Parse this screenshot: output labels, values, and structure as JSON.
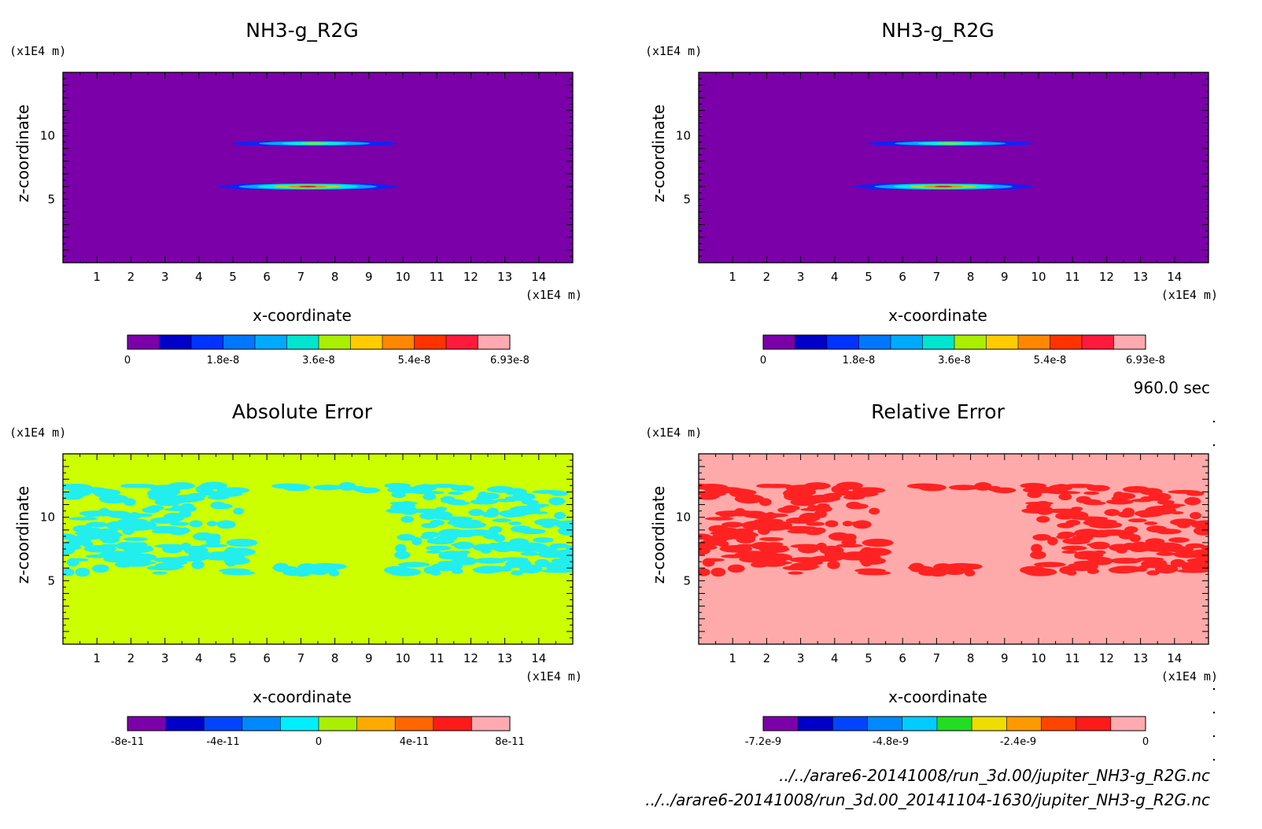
{
  "footer": {
    "time_label": "960.0 sec",
    "file_paths": [
      "../../arare6-20141008/run_3d.00/jupiter_NH3-g_R2G.nc",
      "../../arare6-20141008/run_3d.00_20141104-1630/jupiter_NH3-g_R2G.nc"
    ]
  },
  "chart_data": [
    {
      "type": "heatmap",
      "title": "NH3-g_R2G",
      "xlabel": "x-coordinate",
      "ylabel": "z-coordinate",
      "x_unit": "(x1E4 m)",
      "y_unit": "(x1E4 m)",
      "xlim": [
        0,
        15
      ],
      "ylim": [
        0,
        15
      ],
      "x_ticks": [
        1,
        2,
        3,
        4,
        5,
        6,
        7,
        8,
        9,
        10,
        11,
        12,
        13,
        14
      ],
      "y_ticks": [
        5,
        10
      ],
      "background_color": "#7b00aa",
      "features": [
        {
          "kind": "ellipse",
          "cx": 7.4,
          "cz": 9.4,
          "rx": 2.45,
          "rz": 0.22,
          "levels": [
            "#0026ff",
            "#00aaff",
            "#00f0d0",
            "#aadd00"
          ]
        },
        {
          "kind": "ellipse",
          "cx": 7.2,
          "cz": 6.0,
          "rx": 2.65,
          "rz": 0.28,
          "levels": [
            "#0026ff",
            "#00aaff",
            "#00f0d0",
            "#aadd00",
            "#ff8800",
            "#ff1a1a"
          ]
        }
      ],
      "colorbar": {
        "colors": [
          "#7b00aa",
          "#0000c8",
          "#0033ff",
          "#0077ff",
          "#00aaff",
          "#00e5d0",
          "#aaee00",
          "#ffcc00",
          "#ff8800",
          "#ff3300",
          "#ff1a3c",
          "#ffaab0"
        ],
        "tick_labels": [
          "0",
          "1.8e-8",
          "3.6e-8",
          "5.4e-8",
          "6.93e-8"
        ]
      }
    },
    {
      "type": "heatmap",
      "title": "NH3-g_R2G",
      "xlabel": "x-coordinate",
      "ylabel": "z-coordinate",
      "x_unit": "(x1E4 m)",
      "y_unit": "(x1E4 m)",
      "xlim": [
        0,
        15
      ],
      "ylim": [
        0,
        15
      ],
      "x_ticks": [
        1,
        2,
        3,
        4,
        5,
        6,
        7,
        8,
        9,
        10,
        11,
        12,
        13,
        14
      ],
      "y_ticks": [
        5,
        10
      ],
      "background_color": "#7b00aa",
      "features": [
        {
          "kind": "ellipse",
          "cx": 7.4,
          "cz": 9.4,
          "rx": 2.45,
          "rz": 0.22,
          "levels": [
            "#0026ff",
            "#00aaff",
            "#00f0d0",
            "#aadd00"
          ]
        },
        {
          "kind": "ellipse",
          "cx": 7.2,
          "cz": 6.0,
          "rx": 2.65,
          "rz": 0.28,
          "levels": [
            "#0026ff",
            "#00aaff",
            "#00f0d0",
            "#aadd00",
            "#ff8800",
            "#ff1a1a"
          ]
        }
      ],
      "colorbar": {
        "colors": [
          "#7b00aa",
          "#0000c8",
          "#0033ff",
          "#0077ff",
          "#00aaff",
          "#00e5d0",
          "#aaee00",
          "#ffcc00",
          "#ff8800",
          "#ff3300",
          "#ff1a3c",
          "#ffaab0"
        ],
        "tick_labels": [
          "0",
          "1.8e-8",
          "3.6e-8",
          "5.4e-8",
          "6.93e-8"
        ]
      }
    },
    {
      "type": "heatmap",
      "title": "Absolute Error",
      "xlabel": "x-coordinate",
      "ylabel": "z-coordinate",
      "x_unit": "(x1E4 m)",
      "y_unit": "(x1E4 m)",
      "xlim": [
        0,
        15
      ],
      "ylim": [
        0,
        15
      ],
      "x_ticks": [
        1,
        2,
        3,
        4,
        5,
        6,
        7,
        8,
        9,
        10,
        11,
        12,
        13,
        14
      ],
      "y_ticks": [
        5,
        10
      ],
      "background_color": "#ccff00",
      "features": [
        {
          "kind": "speckle",
          "color": "#22eeee",
          "seed": 7,
          "regions": [
            {
              "x": [
                0.0,
                5.3
              ],
              "z": [
                5.6,
                12.5
              ],
              "count": 140
            },
            {
              "x": [
                9.8,
                15.0
              ],
              "z": [
                5.6,
                12.5
              ],
              "count": 140
            },
            {
              "x": [
                6.3,
                8.7
              ],
              "z": [
                5.6,
                6.3
              ],
              "count": 14
            },
            {
              "x": [
                5.8,
                9.2
              ],
              "z": [
                12.0,
                12.5
              ],
              "count": 6
            }
          ]
        }
      ],
      "colorbar": {
        "colors": [
          "#7b00aa",
          "#0000c8",
          "#0044ff",
          "#0088ff",
          "#00eeff",
          "#aaee00",
          "#ffaa00",
          "#ff6600",
          "#ff1a1a",
          "#ffaab0"
        ],
        "tick_labels": [
          "-8e-11",
          "-4e-11",
          "0",
          "4e-11",
          "8e-11"
        ]
      }
    },
    {
      "type": "heatmap",
      "title": "Relative Error",
      "xlabel": "x-coordinate",
      "ylabel": "z-coordinate",
      "x_unit": "(x1E4 m)",
      "y_unit": "(x1E4 m)",
      "xlim": [
        0,
        15
      ],
      "ylim": [
        0,
        15
      ],
      "x_ticks": [
        1,
        2,
        3,
        4,
        5,
        6,
        7,
        8,
        9,
        10,
        11,
        12,
        13,
        14
      ],
      "y_ticks": [
        5,
        10
      ],
      "background_color": "#ffaaaa",
      "features": [
        {
          "kind": "speckle",
          "color": "#ff2222",
          "seed": 7,
          "regions": [
            {
              "x": [
                0.0,
                5.3
              ],
              "z": [
                5.6,
                12.5
              ],
              "count": 140
            },
            {
              "x": [
                9.8,
                15.0
              ],
              "z": [
                5.6,
                12.5
              ],
              "count": 140
            },
            {
              "x": [
                6.3,
                8.7
              ],
              "z": [
                5.6,
                6.3
              ],
              "count": 14
            },
            {
              "x": [
                5.8,
                9.2
              ],
              "z": [
                12.0,
                12.5
              ],
              "count": 6
            }
          ]
        }
      ],
      "colorbar": {
        "colors": [
          "#7b00aa",
          "#0000c8",
          "#0044ff",
          "#0088ff",
          "#00ccff",
          "#22dd22",
          "#eedd00",
          "#ff9900",
          "#ff4400",
          "#ff1a1a",
          "#ffaab0"
        ],
        "tick_labels": [
          "-7.2e-9",
          "-4.8e-9",
          "-2.4e-9",
          "0"
        ]
      }
    }
  ]
}
